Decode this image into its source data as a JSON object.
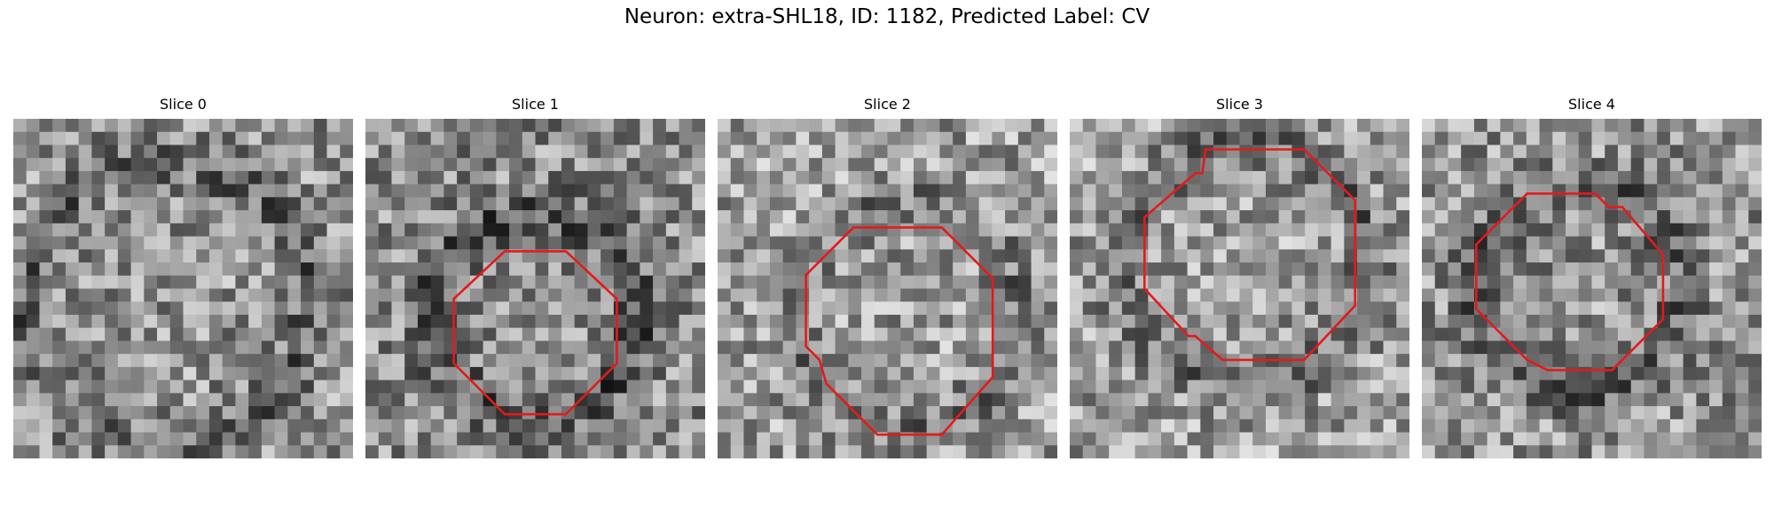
{
  "figure": {
    "title": "Neuron: extra-SHL18, ID: 1182, Predicted Label: CV",
    "outline_color": "#e41a1c",
    "colormap": "gray",
    "grid_size": 26
  },
  "panels": [
    {
      "title": "Slice 0",
      "has_outline": false
    },
    {
      "title": "Slice 1",
      "has_outline": true
    },
    {
      "title": "Slice 2",
      "has_outline": true
    },
    {
      "title": "Slice 3",
      "has_outline": true
    },
    {
      "title": "Slice 4",
      "has_outline": true
    }
  ]
}
